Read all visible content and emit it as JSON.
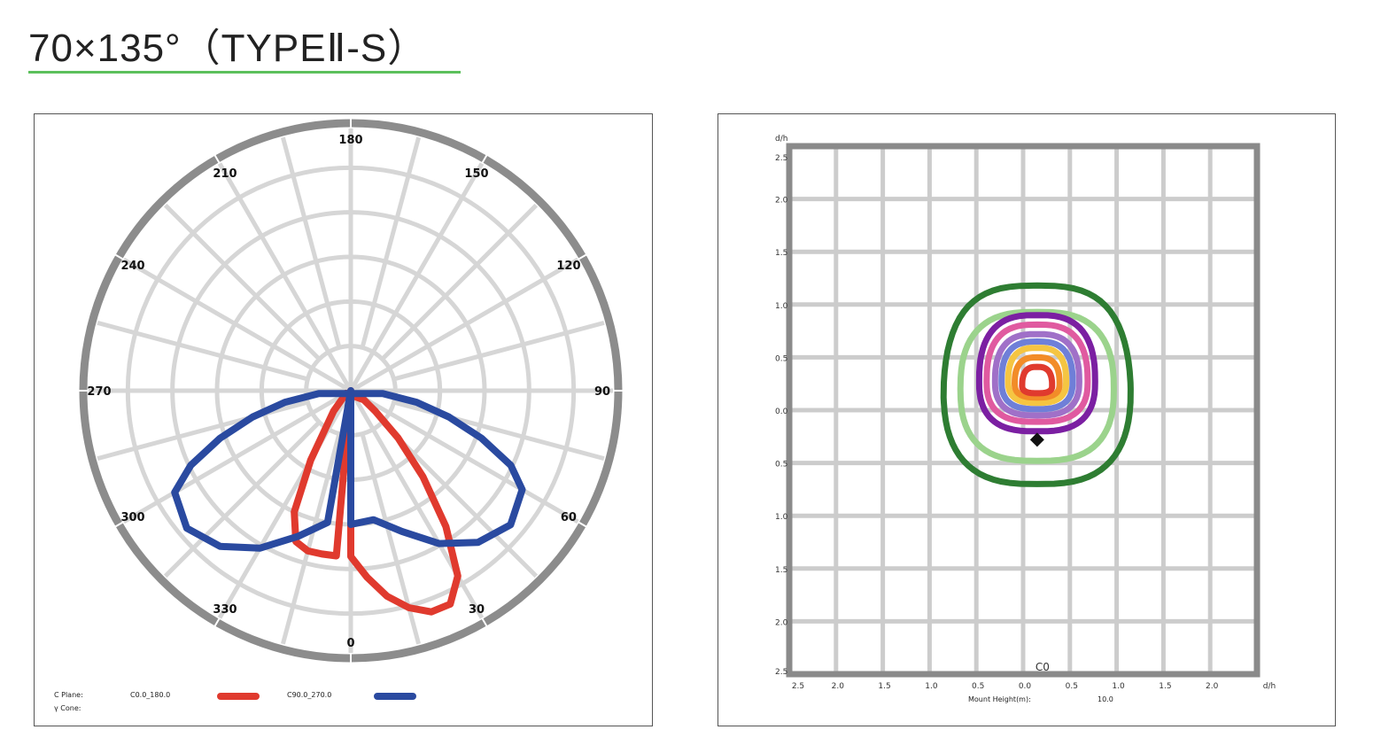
{
  "title": "70×135°（TYPEⅡ-S）",
  "colors": {
    "title_rule": "#5cc05c",
    "c0_180": "#e03a2e",
    "c90_270": "#2a4aa0",
    "grid": "#d6d6d6",
    "rim": "#8c8c8c"
  },
  "chart_data": [
    {
      "type": "polar",
      "angle_labels": [
        "180",
        "150",
        "120",
        "90",
        "60",
        "30",
        "0",
        "330",
        "300",
        "270",
        "240",
        "210"
      ],
      "legend": {
        "c_plane_label": "C Plane:",
        "cone_label": "γ Cone:",
        "series": [
          {
            "name": "C0.0_180.0",
            "color": "#e03a2e"
          },
          {
            "name": "C90.0_270.0",
            "color": "#2a4aa0"
          }
        ]
      },
      "series": [
        {
          "name": "C0.0_180.0",
          "color": "#e03a2e",
          "points": [
            [
              0,
              0.62
            ],
            [
              5,
              0.7
            ],
            [
              10,
              0.78
            ],
            [
              15,
              0.84
            ],
            [
              20,
              0.88
            ],
            [
              25,
              0.88
            ],
            [
              30,
              0.8
            ],
            [
              35,
              0.62
            ],
            [
              40,
              0.42
            ],
            [
              45,
              0.25
            ],
            [
              50,
              0.12
            ],
            [
              55,
              0.06
            ],
            [
              300,
              0.02
            ],
            [
              320,
              0.1
            ],
            [
              330,
              0.3
            ],
            [
              335,
              0.5
            ],
            [
              340,
              0.6
            ],
            [
              345,
              0.62
            ],
            [
              350,
              0.62
            ],
            [
              355,
              0.62
            ]
          ]
        },
        {
          "name": "C90.0_270.0",
          "color": "#2a4aa0",
          "points": [
            [
              0,
              0.5
            ],
            [
              10,
              0.49
            ],
            [
              20,
              0.56
            ],
            [
              30,
              0.66
            ],
            [
              40,
              0.74
            ],
            [
              50,
              0.78
            ],
            [
              60,
              0.74
            ],
            [
              65,
              0.66
            ],
            [
              70,
              0.52
            ],
            [
              75,
              0.38
            ],
            [
              80,
              0.25
            ],
            [
              85,
              0.12
            ],
            [
              275,
              0.12
            ],
            [
              280,
              0.25
            ],
            [
              285,
              0.38
            ],
            [
              290,
              0.52
            ],
            [
              295,
              0.66
            ],
            [
              300,
              0.76
            ],
            [
              310,
              0.8
            ],
            [
              320,
              0.76
            ],
            [
              330,
              0.68
            ],
            [
              340,
              0.58
            ],
            [
              350,
              0.5
            ]
          ]
        }
      ]
    },
    {
      "type": "isolux",
      "x_ticks": [
        "2.5",
        "2.0",
        "1.5",
        "1.0",
        "0.5",
        "0.0",
        "0.5",
        "1.0",
        "1.5",
        "2.0"
      ],
      "x_unit": "d/h",
      "y_unit": "d/h",
      "y_ticks": [
        "2.5",
        "2.0",
        "1.5",
        "1.0",
        "0.5",
        "0.0",
        "0.5",
        "1.0",
        "1.5",
        "2.0",
        "2.5"
      ],
      "plane_label": "C0",
      "mount_height_label": "Mount Height(m):",
      "mount_height_value": "10.0",
      "contours": [
        {
          "color": "#2e7d32",
          "hx": 1.0,
          "hy_top": 0.98,
          "hy_bot": 0.9,
          "cx": 0.0,
          "cy": 0.25
        },
        {
          "color": "#9bd38c",
          "hx": 0.82,
          "hy_top": 0.73,
          "hy_bot": 0.68,
          "cx": 0.0,
          "cy": 0.25
        },
        {
          "color": "#7b1fa2",
          "hx": 0.62,
          "hy_top": 0.63,
          "hy_bot": 0.47,
          "cx": 0.0,
          "cy": 0.32
        },
        {
          "color": "#e05aa0",
          "hx": 0.54,
          "hy_top": 0.54,
          "hy_bot": 0.38,
          "cx": 0.0,
          "cy": 0.32
        },
        {
          "color": "#a070c8",
          "hx": 0.45,
          "hy_top": 0.45,
          "hy_bot": 0.32,
          "cx": 0.0,
          "cy": 0.32
        },
        {
          "color": "#6f7fd8",
          "hx": 0.38,
          "hy_top": 0.38,
          "hy_bot": 0.26,
          "cx": 0.0,
          "cy": 0.32
        },
        {
          "color": "#f5c542",
          "hx": 0.31,
          "hy_top": 0.32,
          "hy_bot": 0.2,
          "cx": 0.0,
          "cy": 0.32
        },
        {
          "color": "#f28c28",
          "hx": 0.24,
          "hy_top": 0.25,
          "hy_bot": 0.13,
          "cx": 0.0,
          "cy": 0.3
        },
        {
          "color": "#e03a2e",
          "hx": 0.16,
          "hy_top": 0.18,
          "hy_bot": 0.07,
          "cx": 0.0,
          "cy": 0.28
        }
      ],
      "luminaire_marker": {
        "x": 0.0,
        "y": -0.23,
        "color": "#111111"
      }
    }
  ]
}
